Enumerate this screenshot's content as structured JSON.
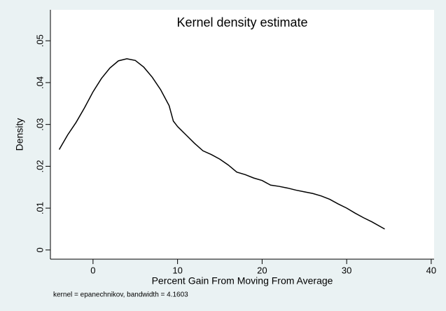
{
  "chart_data": {
    "type": "line",
    "title": "Kernel density estimate",
    "x_label": "Percent Gain From Moving From Average",
    "y_label": "Density",
    "note": "kernel = epanechnikov, bandwidth = 4.1603",
    "color": "#000000",
    "x": [
      -4,
      -3,
      -2,
      -1,
      0,
      1,
      2,
      3,
      4,
      5,
      6,
      7,
      8,
      9,
      9.5,
      10,
      11,
      12,
      13,
      14,
      15,
      16,
      17,
      18,
      19,
      20,
      21,
      22,
      23,
      24,
      25,
      26,
      27,
      28,
      29,
      30,
      31,
      32,
      33,
      34.5
    ],
    "values": [
      0.024,
      0.0275,
      0.0305,
      0.034,
      0.0378,
      0.041,
      0.0435,
      0.0452,
      0.0457,
      0.0453,
      0.0437,
      0.0413,
      0.0383,
      0.0345,
      0.0308,
      0.0295,
      0.0275,
      0.0255,
      0.0237,
      0.0228,
      0.0217,
      0.0203,
      0.0186,
      0.018,
      0.0172,
      0.0166,
      0.0155,
      0.0152,
      0.0148,
      0.0143,
      0.0139,
      0.0135,
      0.0129,
      0.0121,
      0.011,
      0.01,
      0.0088,
      0.0077,
      0.0067,
      0.005
    ],
    "xlim": [
      -5.04,
      40.34
    ],
    "xticks": [
      0,
      10,
      20,
      30,
      40
    ],
    "ylim": [
      -0.0022,
      0.0574
    ],
    "yticks": [
      0,
      {
        "value": 0.01,
        "label": ".01"
      },
      {
        "value": 0.02,
        "label": ".02"
      },
      {
        "value": 0.03,
        "label": ".03"
      },
      {
        "value": 0.04,
        "label": ".04"
      },
      {
        "value": 0.05,
        "label": ".05"
      }
    ],
    "grid": false
  }
}
